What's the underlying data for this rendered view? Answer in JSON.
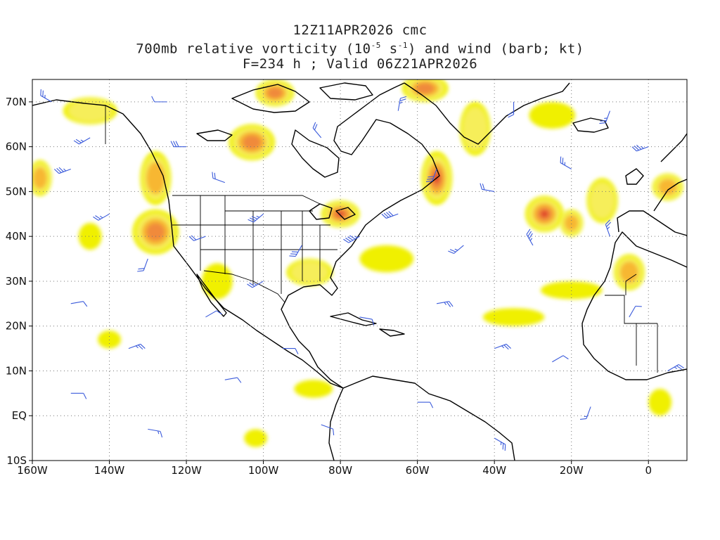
{
  "title": {
    "line1": "12Z11APR2026 cmc",
    "line2_prefix": "700mb relative vorticity (10",
    "line2_sup1": "-5",
    "line2_mid": " s",
    "line2_sup2": "-1",
    "line2_suffix": ") and wind (barb; kt)",
    "line3": "F=234 h ; Valid 06Z21APR2026"
  },
  "axes": {
    "lon_labels": [
      "160W",
      "140W",
      "120W",
      "100W",
      "80W",
      "60W",
      "40W",
      "20W",
      "0"
    ],
    "lon_values": [
      -160,
      -140,
      -120,
      -100,
      -80,
      -60,
      -40,
      -20,
      0
    ],
    "lat_labels": [
      "70N",
      "60N",
      "50N",
      "40N",
      "30N",
      "20N",
      "10N",
      "EQ",
      "10S"
    ],
    "lat_values": [
      70,
      60,
      50,
      40,
      30,
      20,
      10,
      0,
      -10
    ],
    "lon_range": [
      -160,
      10
    ],
    "lat_range": [
      -10,
      75
    ]
  },
  "colors": {
    "barb": "#3b5bdb",
    "coast": "#000000",
    "grid": "#888888",
    "vort_levels": [
      "#f0f000",
      "#f6ee5a",
      "#f7b733",
      "#f08a3a",
      "#e0452a"
    ]
  },
  "vorticity_blobs": [
    {
      "lon": -80,
      "lat": 45,
      "rx": 5,
      "ry": 3,
      "level": 4
    },
    {
      "lon": -27,
      "lat": 45,
      "rx": 5,
      "ry": 4,
      "level": 4
    },
    {
      "lon": -55,
      "lat": 53,
      "rx": 4,
      "ry": 6,
      "level": 4
    },
    {
      "lon": -103,
      "lat": 61,
      "rx": 6,
      "ry": 4,
      "level": 3
    },
    {
      "lon": -128,
      "lat": 41,
      "rx": 6,
      "ry": 5,
      "level": 3
    },
    {
      "lon": -97,
      "lat": 72,
      "rx": 5,
      "ry": 3,
      "level": 3
    },
    {
      "lon": -128,
      "lat": 53,
      "rx": 4,
      "ry": 6,
      "level": 2
    },
    {
      "lon": -58,
      "lat": 73,
      "rx": 6,
      "ry": 3,
      "level": 3
    },
    {
      "lon": -20,
      "lat": 43,
      "rx": 3,
      "ry": 3,
      "level": 2
    },
    {
      "lon": -5,
      "lat": 32,
      "rx": 4,
      "ry": 4,
      "level": 2
    },
    {
      "lon": -145,
      "lat": 68,
      "rx": 7,
      "ry": 3,
      "level": 1
    },
    {
      "lon": -12,
      "lat": 48,
      "rx": 4,
      "ry": 5,
      "level": 1
    },
    {
      "lon": 5,
      "lat": 51,
      "rx": 4,
      "ry": 3,
      "level": 2
    },
    {
      "lon": -35,
      "lat": 22,
      "rx": 8,
      "ry": 2,
      "level": 0
    },
    {
      "lon": -88,
      "lat": 32,
      "rx": 6,
      "ry": 3,
      "level": 1
    },
    {
      "lon": -112,
      "lat": 30,
      "rx": 4,
      "ry": 4,
      "level": 0
    },
    {
      "lon": -68,
      "lat": 35,
      "rx": 7,
      "ry": 3,
      "level": 0
    },
    {
      "lon": -158,
      "lat": 53,
      "rx": 3,
      "ry": 4,
      "level": 2
    },
    {
      "lon": -87,
      "lat": 6,
      "rx": 5,
      "ry": 2,
      "level": 0
    },
    {
      "lon": -102,
      "lat": -5,
      "rx": 3,
      "ry": 2,
      "level": 0
    },
    {
      "lon": 3,
      "lat": 3,
      "rx": 3,
      "ry": 3,
      "level": 0
    },
    {
      "lon": -20,
      "lat": 28,
      "rx": 8,
      "ry": 2,
      "level": 0
    },
    {
      "lon": -45,
      "lat": 64,
      "rx": 4,
      "ry": 6,
      "level": 1
    },
    {
      "lon": -25,
      "lat": 67,
      "rx": 6,
      "ry": 3,
      "level": 0
    },
    {
      "lon": -145,
      "lat": 40,
      "rx": 3,
      "ry": 3,
      "level": 0
    },
    {
      "lon": -140,
      "lat": 17,
      "rx": 3,
      "ry": 2,
      "level": 0
    }
  ],
  "wind_barbs": [
    {
      "lon": -150,
      "lat": 55,
      "dir": 250,
      "spd": 25
    },
    {
      "lon": -140,
      "lat": 45,
      "dir": 240,
      "spd": 15
    },
    {
      "lon": -130,
      "lat": 35,
      "dir": 200,
      "spd": 20
    },
    {
      "lon": -120,
      "lat": 60,
      "dir": 270,
      "spd": 30
    },
    {
      "lon": -110,
      "lat": 52,
      "dir": 290,
      "spd": 20
    },
    {
      "lon": -100,
      "lat": 45,
      "dir": 230,
      "spd": 25
    },
    {
      "lon": -90,
      "lat": 38,
      "dir": 210,
      "spd": 30
    },
    {
      "lon": -75,
      "lat": 40,
      "dir": 240,
      "spd": 35
    },
    {
      "lon": -65,
      "lat": 45,
      "dir": 250,
      "spd": 40
    },
    {
      "lon": -55,
      "lat": 55,
      "dir": 200,
      "spd": 30
    },
    {
      "lon": -40,
      "lat": 50,
      "dir": 280,
      "spd": 20
    },
    {
      "lon": -30,
      "lat": 38,
      "dir": 330,
      "spd": 25
    },
    {
      "lon": -20,
      "lat": 55,
      "dir": 300,
      "spd": 15
    },
    {
      "lon": -10,
      "lat": 40,
      "dir": 340,
      "spd": 15
    },
    {
      "lon": 0,
      "lat": 60,
      "dir": 250,
      "spd": 25
    },
    {
      "lon": -150,
      "lat": 25,
      "dir": 80,
      "spd": 10
    },
    {
      "lon": -135,
      "lat": 15,
      "dir": 70,
      "spd": 15
    },
    {
      "lon": -115,
      "lat": 22,
      "dir": 60,
      "spd": 10
    },
    {
      "lon": -95,
      "lat": 15,
      "dir": 90,
      "spd": 10
    },
    {
      "lon": -75,
      "lat": 22,
      "dir": 100,
      "spd": 10
    },
    {
      "lon": -55,
      "lat": 25,
      "dir": 80,
      "spd": 15
    },
    {
      "lon": -40,
      "lat": 15,
      "dir": 70,
      "spd": 15
    },
    {
      "lon": -25,
      "lat": 12,
      "dir": 60,
      "spd": 10
    },
    {
      "lon": -150,
      "lat": 5,
      "dir": 90,
      "spd": 10
    },
    {
      "lon": -130,
      "lat": -3,
      "dir": 100,
      "spd": 5
    },
    {
      "lon": -110,
      "lat": 8,
      "dir": 80,
      "spd": 10
    },
    {
      "lon": -85,
      "lat": -2,
      "dir": 110,
      "spd": 10
    },
    {
      "lon": -60,
      "lat": 3,
      "dir": 90,
      "spd": 10
    },
    {
      "lon": -40,
      "lat": -5,
      "dir": 120,
      "spd": 15
    },
    {
      "lon": -15,
      "lat": 2,
      "dir": 200,
      "spd": 5
    },
    {
      "lon": -155,
      "lat": 70,
      "dir": 300,
      "spd": 15
    },
    {
      "lon": -85,
      "lat": 62,
      "dir": 320,
      "spd": 20
    },
    {
      "lon": -65,
      "lat": 68,
      "dir": 10,
      "spd": 15
    },
    {
      "lon": -35,
      "lat": 70,
      "dir": 180,
      "spd": 20
    },
    {
      "lon": -10,
      "lat": 68,
      "dir": 200,
      "spd": 15
    },
    {
      "lon": -125,
      "lat": 70,
      "dir": 270,
      "spd": 10
    },
    {
      "lon": -100,
      "lat": 30,
      "dir": 240,
      "spd": 15
    },
    {
      "lon": -115,
      "lat": 40,
      "dir": 250,
      "spd": 20
    },
    {
      "lon": -48,
      "lat": 38,
      "dir": 230,
      "spd": 15
    },
    {
      "lon": -5,
      "lat": 22,
      "dir": 30,
      "spd": 10
    },
    {
      "lon": 5,
      "lat": 10,
      "dir": 60,
      "spd": 15
    },
    {
      "lon": -160,
      "lat": 40,
      "dir": 260,
      "spd": 20
    },
    {
      "lon": -145,
      "lat": 62,
      "dir": 240,
      "spd": 15
    }
  ]
}
